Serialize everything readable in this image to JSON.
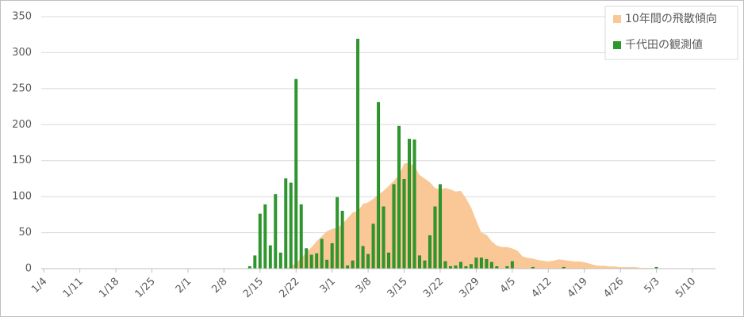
{
  "chart_data": {
    "type": "combo",
    "categories": [
      "1/4",
      null,
      null,
      null,
      null,
      null,
      null,
      "1/11",
      null,
      null,
      null,
      null,
      null,
      null,
      "1/18",
      null,
      null,
      null,
      null,
      null,
      null,
      "1/25",
      null,
      null,
      null,
      null,
      null,
      null,
      "2/1",
      null,
      null,
      null,
      null,
      null,
      null,
      "2/8",
      null,
      null,
      null,
      null,
      null,
      null,
      "2/15",
      null,
      null,
      null,
      null,
      null,
      null,
      "2/22",
      null,
      null,
      null,
      null,
      null,
      null,
      "3/1",
      null,
      null,
      null,
      null,
      null,
      null,
      "3/8",
      null,
      null,
      null,
      null,
      null,
      null,
      "3/15",
      null,
      null,
      null,
      null,
      null,
      null,
      "3/22",
      null,
      null,
      null,
      null,
      null,
      null,
      "3/29",
      null,
      null,
      null,
      null,
      null,
      null,
      "4/5",
      null,
      null,
      null,
      null,
      null,
      null,
      "4/12",
      null,
      null,
      null,
      null,
      null,
      null,
      "4/19",
      null,
      null,
      null,
      null,
      null,
      null,
      "4/26",
      null,
      null,
      null,
      null,
      null,
      null,
      "5/3",
      null,
      null,
      null,
      null,
      null,
      null,
      "5/10",
      null,
      null,
      null,
      null
    ],
    "series": [
      {
        "name": "10年間の飛散傾向",
        "type": "area",
        "color": "#f9c896",
        "values": [
          0,
          0,
          0,
          0,
          0,
          0,
          0,
          0,
          0,
          0,
          0,
          0,
          0,
          0,
          0,
          0,
          0,
          0,
          0,
          0,
          0,
          0,
          0,
          0,
          0,
          0,
          0,
          0,
          0,
          0,
          0,
          0,
          0,
          0,
          0,
          0,
          0,
          0,
          0,
          0,
          0,
          0,
          0,
          0,
          0,
          0,
          0,
          0,
          3,
          8,
          15,
          22,
          30,
          38,
          45,
          52,
          55,
          57,
          62,
          70,
          78,
          80,
          90,
          92,
          97,
          103,
          108,
          115,
          122,
          130,
          146,
          147,
          142,
          130,
          125,
          120,
          112,
          110,
          112,
          110,
          107,
          108,
          98,
          85,
          67,
          50,
          47,
          38,
          32,
          30,
          30,
          28,
          25,
          17,
          15,
          14,
          12,
          11,
          10,
          11,
          13,
          12,
          11,
          10,
          10,
          9,
          7,
          5,
          4,
          4,
          3,
          3,
          2,
          2,
          2,
          2,
          1,
          1,
          1,
          0,
          0,
          0,
          0,
          0,
          0,
          0,
          0,
          0,
          0,
          0,
          0
        ]
      },
      {
        "name": "千代田の観測値",
        "type": "bar",
        "color": "#2b9a2b",
        "values": [
          0,
          0,
          0,
          0,
          0,
          0,
          0,
          0,
          0,
          0,
          0,
          0,
          0,
          0,
          0,
          0,
          0,
          0,
          0,
          0,
          0,
          0,
          0,
          0,
          0,
          0,
          0,
          0,
          0,
          0,
          0,
          0,
          0,
          0,
          0,
          0,
          0,
          0,
          0,
          0,
          3,
          18,
          76,
          89,
          32,
          103,
          22,
          125,
          119,
          263,
          89,
          28,
          19,
          21,
          41,
          12,
          35,
          99,
          80,
          4,
          11,
          319,
          31,
          20,
          62,
          231,
          86,
          22,
          117,
          198,
          124,
          180,
          179,
          18,
          11,
          46,
          86,
          117,
          10,
          3,
          4,
          9,
          3,
          6,
          15,
          15,
          13,
          9,
          3,
          0,
          3,
          10,
          0,
          0,
          0,
          2,
          0,
          0,
          0,
          0,
          0,
          2,
          0,
          0,
          0,
          0,
          0,
          0,
          0,
          0,
          0,
          0,
          0,
          0,
          0,
          0,
          0,
          0,
          0,
          2,
          0,
          0,
          0,
          0,
          0,
          0,
          0,
          0,
          0,
          0,
          0
        ]
      }
    ],
    "ylim": [
      0,
      350
    ],
    "yticks": [
      0,
      50,
      100,
      150,
      200,
      250,
      300,
      350
    ],
    "grid": true,
    "legend": "top-right"
  }
}
